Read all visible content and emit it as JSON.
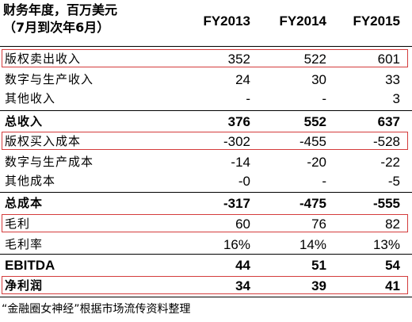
{
  "header": {
    "title_line1": "财务年度，百万美元",
    "title_line2": "（7月到次年6月）",
    "columns": [
      "FY2013",
      "FY2014",
      "FY2015"
    ]
  },
  "rows": [
    {
      "label": "版权卖出收入",
      "values": [
        "352",
        "522",
        "601"
      ]
    },
    {
      "label": "数字与生产收入",
      "values": [
        "24",
        "30",
        "33"
      ]
    },
    {
      "label": "其他收入",
      "values": [
        "-",
        "-",
        "3"
      ]
    },
    {
      "label": "总收入",
      "values": [
        "376",
        "552",
        "637"
      ]
    },
    {
      "label": "版权买入成本",
      "values": [
        "-302",
        "-455",
        "-528"
      ]
    },
    {
      "label": "数字与生产成本",
      "values": [
        "-14",
        "-20",
        "-22"
      ]
    },
    {
      "label": "其他成本",
      "values": [
        "-0",
        "-",
        "-5"
      ]
    },
    {
      "label": "总成本",
      "values": [
        "-317",
        "-475",
        "-555"
      ]
    },
    {
      "label": "毛利",
      "values": [
        "60",
        "76",
        "82"
      ]
    },
    {
      "label": "毛利率",
      "values": [
        "16%",
        "14%",
        "13%"
      ]
    },
    {
      "label": "EBITDA",
      "values": [
        "44",
        "51",
        "54"
      ]
    },
    {
      "label": "净利润",
      "values": [
        "34",
        "39",
        "41"
      ]
    }
  ],
  "footer": {
    "source": "“金融圈女神经”根据市场流传资料整理"
  },
  "colors": {
    "highlight_border": "#d43c3c"
  }
}
